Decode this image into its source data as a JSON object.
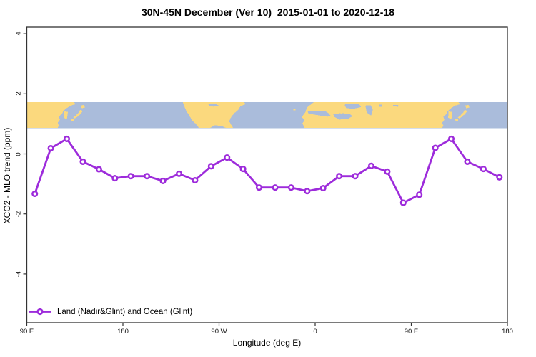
{
  "colors": {
    "accent_purple": "#9D2BDB",
    "marker_fill": "#FFFFFF",
    "land": "#FBD97E",
    "ocean": "#AABCDB",
    "axis": "#333333",
    "background": "#FFFFFF"
  },
  "chart_data": {
    "type": "line",
    "title": "30N-45N December (Ver 10)  2015-01-01 to 2020-12-18",
    "xlabel": "Longitude (deg E)",
    "ylabel": "XCO2 - MLO trend (ppm)",
    "grid": false,
    "legend_position": "bottom-left-inside",
    "x_axis": {
      "range_deg_e": [
        90,
        540
      ],
      "tick_positions_deg": [
        90,
        180,
        270,
        360,
        450,
        540
      ],
      "tick_labels": [
        "90 E",
        "180",
        "90 W",
        "0",
        "90 E",
        "180"
      ]
    },
    "y_axis": {
      "range": [
        -5.6,
        4.2
      ],
      "tick_values": [
        4,
        2,
        0,
        -2,
        -4
      ],
      "tick_labels": [
        "4",
        "2",
        "0",
        "-2",
        "-4"
      ]
    },
    "series": [
      {
        "name": "Land (Nadir&Glint) and Ocean (Glint)",
        "color": "#9D2BDB",
        "marker": "open-circle",
        "x_deg_e": [
          97.5,
          112.5,
          127.5,
          142.5,
          157.5,
          172.5,
          187.5,
          202.5,
          217.5,
          232.5,
          247.5,
          262.5,
          277.5,
          292.5,
          307.5,
          322.5,
          337.5,
          352.5,
          367.5,
          382.5,
          397.5,
          412.5,
          427.5,
          442.5,
          457.5,
          472.5,
          487.5,
          502.5,
          517.5,
          532.5
        ],
        "y_ppm": [
          -1.33,
          0.19,
          0.5,
          -0.26,
          -0.51,
          -0.81,
          -0.74,
          -0.74,
          -0.9,
          -0.66,
          -0.88,
          -0.41,
          -0.12,
          -0.5,
          -1.12,
          -1.12,
          -1.12,
          -1.24,
          -1.14,
          -0.74,
          -0.74,
          -0.4,
          -0.59,
          -1.63,
          -1.36,
          0.2,
          0.5,
          -0.26,
          -0.5,
          -0.78
        ]
      }
    ],
    "map_band": {
      "description": "30N-45N world coastline strip drawn across plot",
      "y_value_range_ppm": [
        0.87,
        1.73
      ],
      "land_color": "#FBD97E",
      "ocean_color": "#AABCDB"
    }
  }
}
